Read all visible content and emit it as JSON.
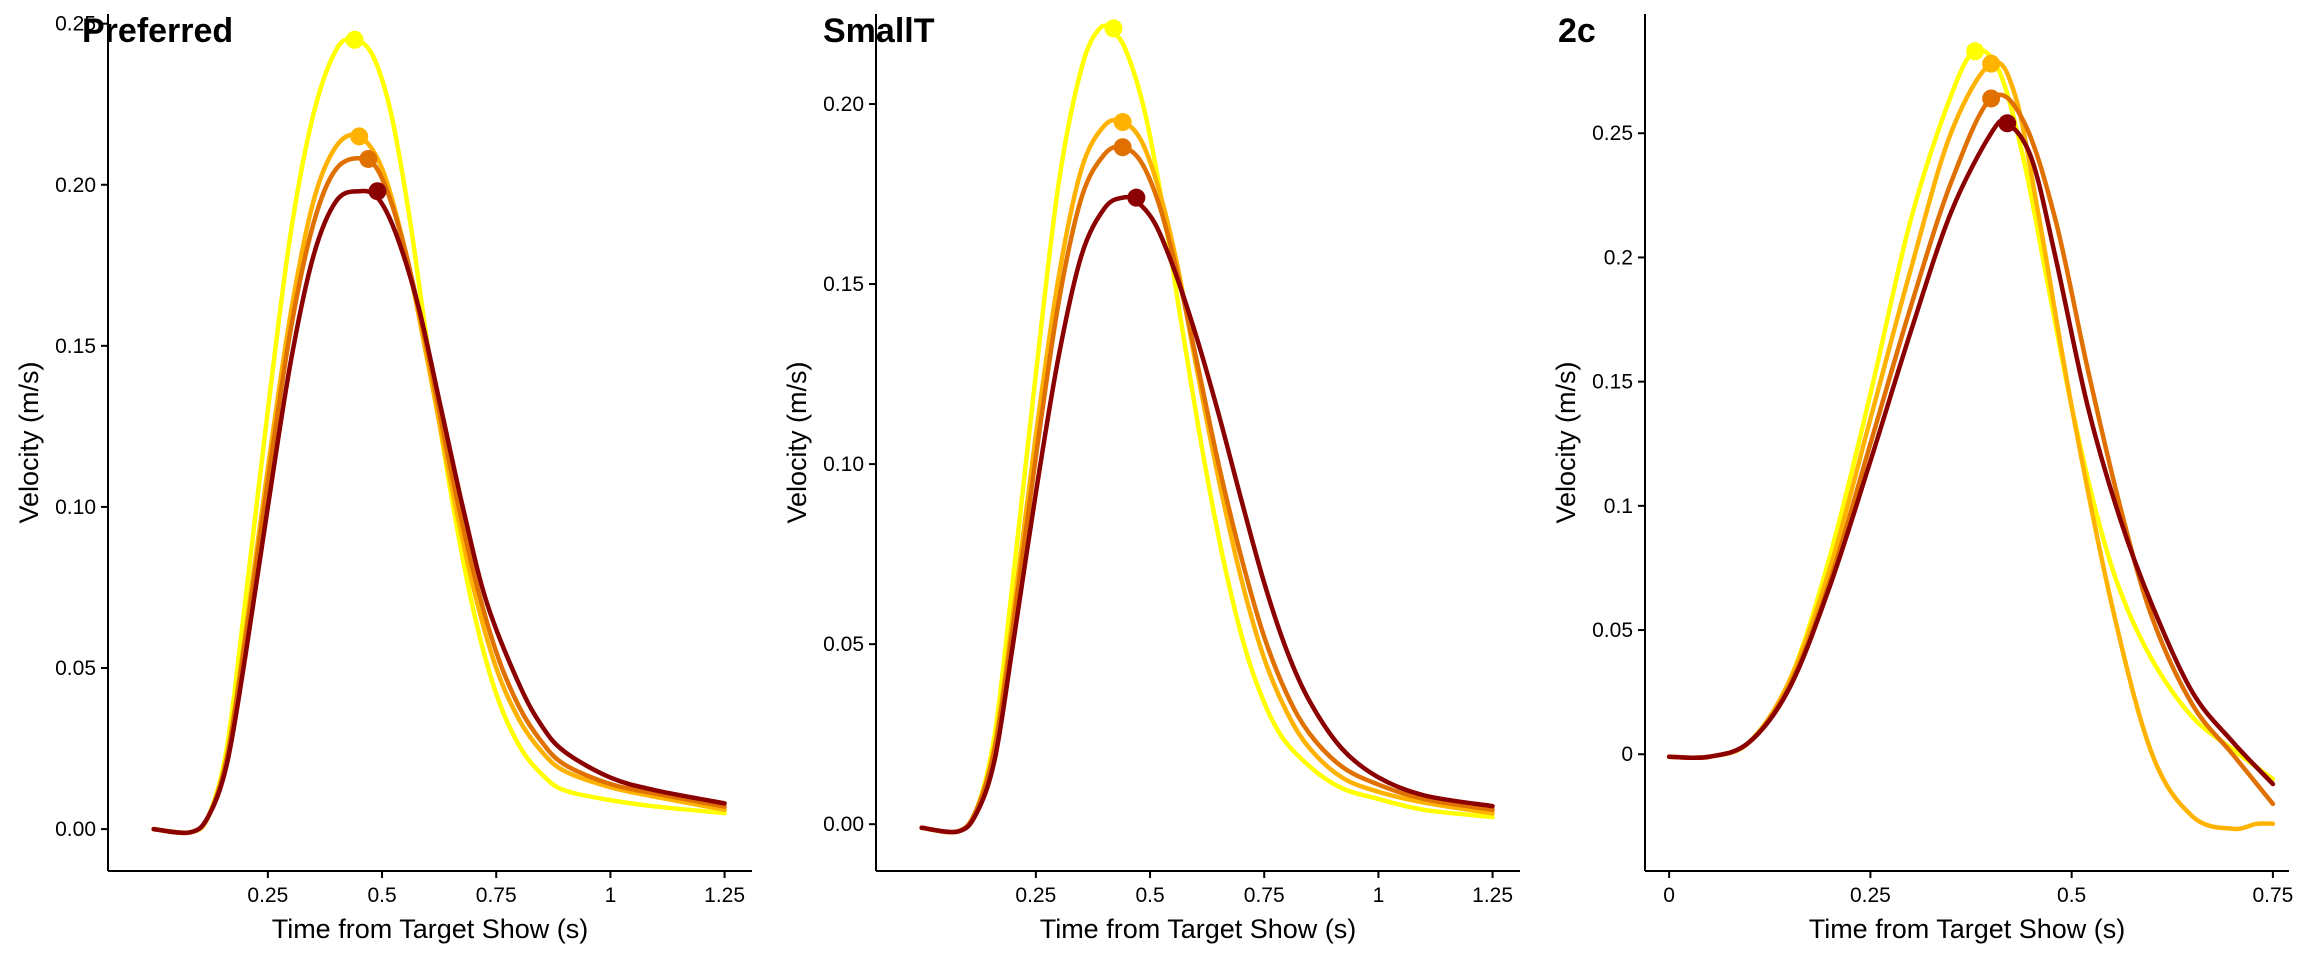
{
  "chart_data": [
    {
      "type": "line",
      "title": "Preferred",
      "xlabel": "Time from Target Show (s)",
      "ylabel": "Velocity (m/s)",
      "xlim": [
        -0.1,
        1.31
      ],
      "ylim": [
        -0.013,
        0.253
      ],
      "xticks": [
        0.25,
        0.5,
        0.75,
        1,
        1.25
      ],
      "xtick_labels": [
        "0.25",
        "0.5",
        "0.75",
        "1",
        "1.25"
      ],
      "yticks": [
        0.0,
        0.05,
        0.1,
        0.15,
        0.2,
        0.25
      ],
      "ytick_labels": [
        "0.00",
        "0.05",
        "0.10",
        "0.15",
        "0.20",
        "0.25"
      ],
      "grid": false,
      "legend": "none",
      "series": [
        {
          "color": "#FFFF00",
          "x": [
            0.0,
            0.08,
            0.12,
            0.16,
            0.2,
            0.25,
            0.3,
            0.35,
            0.4,
            0.44,
            0.48,
            0.52,
            0.56,
            0.6,
            0.65,
            0.7,
            0.75,
            0.8,
            0.85,
            0.9,
            1.0,
            1.1,
            1.25
          ],
          "y": [
            0.0,
            -0.001,
            0.004,
            0.025,
            0.07,
            0.13,
            0.185,
            0.222,
            0.242,
            0.245,
            0.24,
            0.222,
            0.19,
            0.15,
            0.105,
            0.068,
            0.042,
            0.026,
            0.017,
            0.012,
            0.009,
            0.007,
            0.005
          ],
          "peak": [
            0.44,
            0.245
          ]
        },
        {
          "color": "#FFB300",
          "x": [
            0.0,
            0.08,
            0.12,
            0.16,
            0.2,
            0.25,
            0.3,
            0.35,
            0.4,
            0.45,
            0.5,
            0.55,
            0.6,
            0.65,
            0.7,
            0.75,
            0.8,
            0.85,
            0.9,
            1.0,
            1.1,
            1.25
          ],
          "y": [
            0.0,
            -0.001,
            0.004,
            0.022,
            0.06,
            0.112,
            0.16,
            0.195,
            0.212,
            0.215,
            0.205,
            0.18,
            0.145,
            0.108,
            0.075,
            0.05,
            0.034,
            0.024,
            0.018,
            0.013,
            0.01,
            0.006
          ],
          "peak": [
            0.45,
            0.215
          ]
        },
        {
          "color": "#E07000",
          "x": [
            0.0,
            0.08,
            0.12,
            0.16,
            0.2,
            0.25,
            0.3,
            0.35,
            0.4,
            0.46,
            0.5,
            0.55,
            0.6,
            0.65,
            0.7,
            0.75,
            0.8,
            0.85,
            0.9,
            1.0,
            1.1,
            1.25
          ],
          "y": [
            0.0,
            -0.001,
            0.004,
            0.022,
            0.058,
            0.108,
            0.155,
            0.188,
            0.205,
            0.208,
            0.202,
            0.18,
            0.148,
            0.112,
            0.08,
            0.055,
            0.038,
            0.027,
            0.02,
            0.014,
            0.011,
            0.007
          ],
          "peak": [
            0.47,
            0.208
          ]
        },
        {
          "color": "#8B0000",
          "x": [
            0.0,
            0.08,
            0.12,
            0.16,
            0.2,
            0.25,
            0.3,
            0.35,
            0.4,
            0.45,
            0.49,
            0.53,
            0.58,
            0.63,
            0.68,
            0.73,
            0.8,
            0.85,
            0.9,
            1.0,
            1.1,
            1.25
          ],
          "y": [
            0.0,
            -0.001,
            0.004,
            0.02,
            0.053,
            0.1,
            0.145,
            0.178,
            0.195,
            0.198,
            0.196,
            0.185,
            0.162,
            0.13,
            0.098,
            0.07,
            0.045,
            0.032,
            0.024,
            0.016,
            0.012,
            0.008
          ],
          "peak": [
            0.49,
            0.198
          ]
        }
      ]
    },
    {
      "type": "line",
      "title": "SmallT",
      "xlabel": "Time from Target Show (s)",
      "ylabel": "Velocity (m/s)",
      "xlim": [
        -0.1,
        1.31
      ],
      "ylim": [
        -0.013,
        0.225
      ],
      "xticks": [
        0.25,
        0.5,
        0.75,
        1,
        1.25
      ],
      "xtick_labels": [
        "0.25",
        "0.5",
        "0.75",
        "1",
        "1.25"
      ],
      "yticks": [
        0.0,
        0.05,
        0.1,
        0.15,
        0.2
      ],
      "ytick_labels": [
        "0.00",
        "0.05",
        "0.10",
        "0.15",
        "0.20"
      ],
      "grid": false,
      "legend": "none",
      "series": [
        {
          "color": "#FFFF00",
          "x": [
            0.0,
            0.08,
            0.12,
            0.16,
            0.2,
            0.25,
            0.3,
            0.35,
            0.39,
            0.42,
            0.45,
            0.49,
            0.53,
            0.57,
            0.62,
            0.67,
            0.72,
            0.78,
            0.85,
            0.92,
            1.0,
            1.1,
            1.25
          ],
          "y": [
            -0.001,
            -0.002,
            0.004,
            0.025,
            0.068,
            0.125,
            0.178,
            0.21,
            0.221,
            0.22,
            0.214,
            0.197,
            0.17,
            0.138,
            0.1,
            0.068,
            0.044,
            0.026,
            0.016,
            0.01,
            0.007,
            0.004,
            0.002
          ],
          "peak": [
            0.42,
            0.221
          ]
        },
        {
          "color": "#FFB300",
          "x": [
            0.0,
            0.08,
            0.12,
            0.16,
            0.2,
            0.25,
            0.3,
            0.35,
            0.4,
            0.44,
            0.48,
            0.52,
            0.56,
            0.6,
            0.65,
            0.7,
            0.75,
            0.8,
            0.85,
            0.92,
            1.0,
            1.1,
            1.25
          ],
          "y": [
            -0.001,
            -0.002,
            0.004,
            0.022,
            0.058,
            0.108,
            0.152,
            0.182,
            0.194,
            0.195,
            0.19,
            0.176,
            0.155,
            0.128,
            0.096,
            0.068,
            0.046,
            0.031,
            0.021,
            0.013,
            0.009,
            0.006,
            0.003
          ],
          "peak": [
            0.44,
            0.195
          ]
        },
        {
          "color": "#E07000",
          "x": [
            0.0,
            0.08,
            0.12,
            0.16,
            0.2,
            0.25,
            0.3,
            0.35,
            0.4,
            0.44,
            0.48,
            0.52,
            0.56,
            0.6,
            0.65,
            0.7,
            0.75,
            0.8,
            0.85,
            0.92,
            1.0,
            1.1,
            1.25
          ],
          "y": [
            -0.001,
            -0.002,
            0.004,
            0.021,
            0.055,
            0.102,
            0.145,
            0.174,
            0.186,
            0.188,
            0.184,
            0.172,
            0.153,
            0.13,
            0.1,
            0.074,
            0.052,
            0.036,
            0.025,
            0.016,
            0.011,
            0.007,
            0.004
          ],
          "peak": [
            0.44,
            0.188
          ]
        },
        {
          "color": "#8B0000",
          "x": [
            0.0,
            0.08,
            0.12,
            0.16,
            0.2,
            0.25,
            0.3,
            0.35,
            0.4,
            0.44,
            0.47,
            0.51,
            0.55,
            0.6,
            0.65,
            0.7,
            0.75,
            0.8,
            0.85,
            0.92,
            1.0,
            1.1,
            1.25
          ],
          "y": [
            -0.001,
            -0.002,
            0.003,
            0.018,
            0.05,
            0.092,
            0.13,
            0.158,
            0.171,
            0.174,
            0.173,
            0.167,
            0.155,
            0.136,
            0.114,
            0.09,
            0.067,
            0.048,
            0.034,
            0.021,
            0.013,
            0.008,
            0.005
          ],
          "peak": [
            0.47,
            0.174
          ]
        }
      ]
    },
    {
      "type": "line",
      "title": "2c",
      "xlabel": "Time from Target Show (s)",
      "ylabel": "Velocity (m/s)",
      "xlim": [
        -0.03,
        0.77
      ],
      "ylim": [
        -0.047,
        0.298
      ],
      "xticks": [
        0,
        0.25,
        0.5,
        0.75
      ],
      "xtick_labels": [
        "0",
        "0.25",
        "0.5",
        "0.75"
      ],
      "yticks": [
        0,
        0.05,
        0.1,
        0.15,
        0.2,
        0.25
      ],
      "ytick_labels": [
        "0",
        "0.05",
        "0.1",
        "0.15",
        "0.2",
        "0.25"
      ],
      "grid": false,
      "legend": "none",
      "series": [
        {
          "color": "#FFFF00",
          "x": [
            0.0,
            0.05,
            0.1,
            0.15,
            0.2,
            0.25,
            0.3,
            0.35,
            0.38,
            0.41,
            0.44,
            0.47,
            0.5,
            0.53,
            0.56,
            0.6,
            0.65,
            0.7,
            0.75
          ],
          "y": [
            -0.001,
            -0.001,
            0.005,
            0.03,
            0.08,
            0.145,
            0.215,
            0.265,
            0.283,
            0.275,
            0.24,
            0.19,
            0.14,
            0.098,
            0.066,
            0.038,
            0.015,
            0.002,
            -0.01
          ],
          "peak": [
            0.38,
            0.283
          ]
        },
        {
          "color": "#FFB300",
          "x": [
            0.0,
            0.05,
            0.1,
            0.15,
            0.2,
            0.25,
            0.3,
            0.35,
            0.4,
            0.43,
            0.46,
            0.5,
            0.55,
            0.6,
            0.65,
            0.7,
            0.73,
            0.75
          ],
          "y": [
            -0.001,
            -0.001,
            0.005,
            0.03,
            0.075,
            0.135,
            0.195,
            0.25,
            0.278,
            0.265,
            0.215,
            0.14,
            0.06,
            0.0,
            -0.025,
            -0.03,
            -0.028,
            -0.028
          ],
          "peak": [
            0.4,
            0.278
          ]
        },
        {
          "color": "#E07000",
          "x": [
            0.0,
            0.05,
            0.1,
            0.15,
            0.2,
            0.25,
            0.3,
            0.35,
            0.4,
            0.44,
            0.48,
            0.52,
            0.56,
            0.6,
            0.65,
            0.7,
            0.75
          ],
          "y": [
            -0.001,
            -0.001,
            0.005,
            0.028,
            0.07,
            0.125,
            0.18,
            0.23,
            0.264,
            0.255,
            0.215,
            0.155,
            0.1,
            0.055,
            0.02,
            0.0,
            -0.02
          ],
          "peak": [
            0.4,
            0.264
          ]
        },
        {
          "color": "#8B0000",
          "x": [
            0.0,
            0.05,
            0.1,
            0.15,
            0.2,
            0.25,
            0.3,
            0.35,
            0.4,
            0.42,
            0.45,
            0.48,
            0.52,
            0.56,
            0.6,
            0.65,
            0.7,
            0.75
          ],
          "y": [
            -0.001,
            -0.001,
            0.005,
            0.027,
            0.068,
            0.118,
            0.17,
            0.218,
            0.25,
            0.254,
            0.24,
            0.2,
            0.14,
            0.095,
            0.06,
            0.025,
            0.005,
            -0.012
          ],
          "peak": [
            0.42,
            0.254
          ]
        }
      ]
    }
  ]
}
